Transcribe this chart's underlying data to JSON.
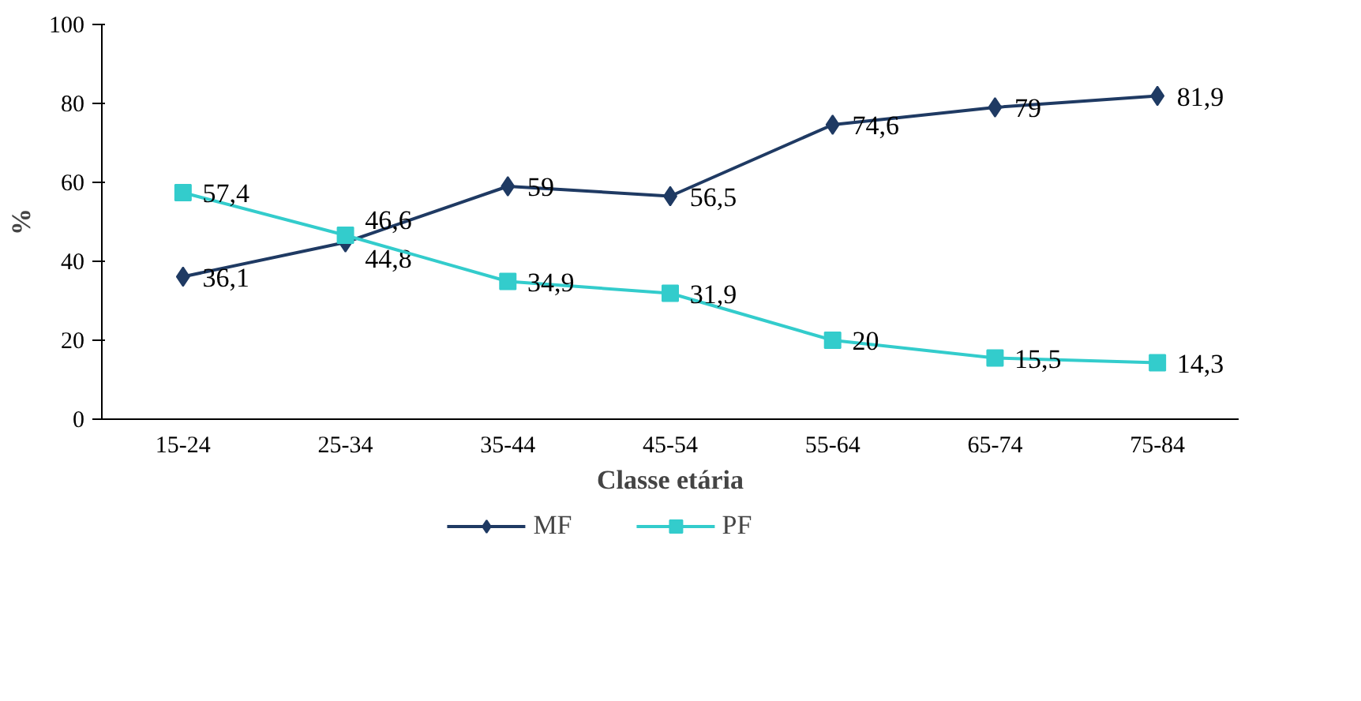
{
  "chart_data": {
    "type": "line",
    "xlabel": "Classe etária",
    "ylabel": "%",
    "categories": [
      "15-24",
      "25-34",
      "35-44",
      "45-54",
      "55-64",
      "65-74",
      "75-84"
    ],
    "series": [
      {
        "name": "MF",
        "color": "#1f3a63",
        "marker": "diamond",
        "values": [
          36.1,
          44.8,
          59,
          56.5,
          74.6,
          79,
          81.9
        ],
        "value_labels": [
          "36,1",
          "44,8",
          "59",
          "56,5",
          "74,6",
          "79",
          "81,9"
        ]
      },
      {
        "name": "PF",
        "color": "#33cccc",
        "marker": "square",
        "values": [
          57.4,
          46.6,
          34.9,
          31.9,
          20,
          15.5,
          14.3
        ],
        "value_labels": [
          "57,4",
          "46,6",
          "34,9",
          "31,9",
          "20",
          "15,5",
          "14,3"
        ]
      }
    ],
    "ylim": [
      0,
      100
    ],
    "yticks": [
      0,
      20,
      40,
      60,
      80,
      100
    ],
    "grid": false,
    "legend": "bottom",
    "line_style": "solid"
  }
}
